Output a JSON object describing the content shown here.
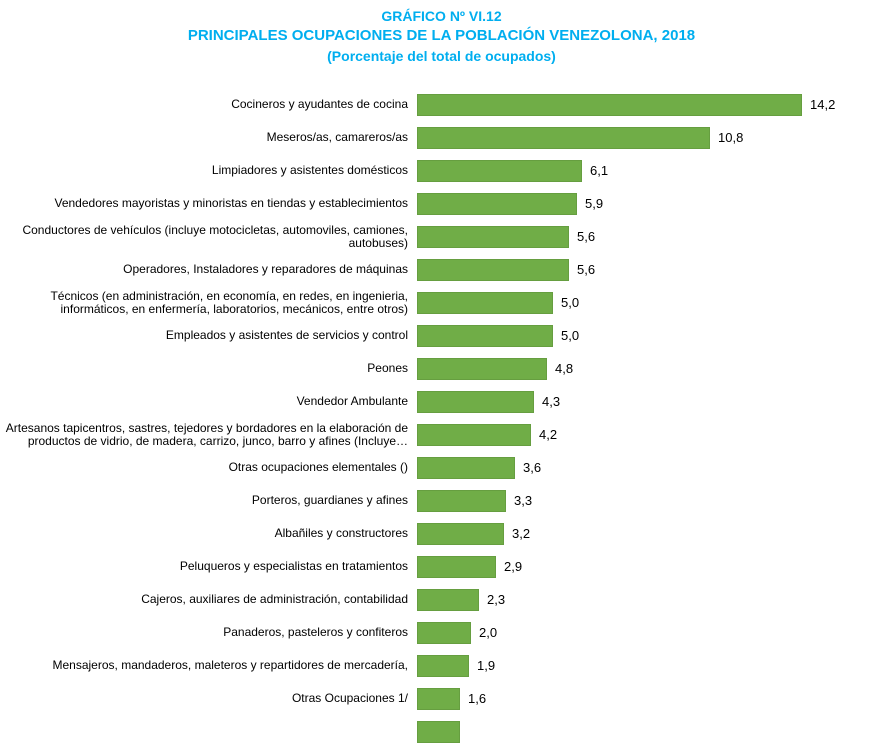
{
  "title": {
    "line1": "GRÁFICO Nº VI.12",
    "line2": "PRINCIPALES OCUPACIONES DE LA POBLACIÓN VENEZOLONA, 2018",
    "line3": "(Porcentaje del total de ocupados)"
  },
  "colors": {
    "title_text": "#00AEEF",
    "bar_fill": "#70AD47"
  },
  "chart_data": {
    "type": "bar",
    "orientation": "horizontal",
    "title": "GRÁFICO Nº VI.12 — PRINCIPALES OCUPACIONES DE LA POBLACIÓN VENEZOLONA, 2018 (Porcentaje del total de ocupados)",
    "xlabel": "",
    "ylabel": "",
    "xlim": [
      0,
      15
    ],
    "grid": false,
    "legend": false,
    "categories": [
      "Cocineros y ayudantes de cocina",
      "Meseros/as, camareros/as",
      "Limpiadores y asistentes domésticos",
      "Vendedores mayoristas y minoristas en tiendas y establecimientos",
      "Conductores de vehículos (incluye motocicletas, automoviles, camiones, autobuses)",
      "Operadores, Instaladores  y reparadores de máquinas",
      "Técnicos (en administración, en economía, en redes, en ingenieria, informáticos, en enfermería, laboratorios, mecánicos, entre otros)",
      "Empleados y asistentes de servicios y control",
      "Peones",
      "Vendedor Ambulante",
      "Artesanos tapicentros, sastres, tejedores y bordadores en la elaboración de productos de vidrio, de madera, carrizo, junco, barro y afines (Incluye…",
      "Otras ocupaciones elementales ()",
      "Porteros, guardianes y afines",
      "Albañiles y constructores",
      "Peluqueros y especialistas en tratamientos",
      "Cajeros, auxiliares de administración, contabilidad",
      "Panaderos, pasteleros y confiteros",
      "Mensajeros, mandaderos, maleteros y repartidores de mercadería,",
      "Otras Ocupaciones 1/"
    ],
    "values": [
      14.2,
      10.8,
      6.1,
      5.9,
      5.6,
      5.6,
      5.0,
      5.0,
      4.8,
      4.3,
      4.2,
      3.6,
      3.3,
      3.2,
      2.9,
      2.3,
      2.0,
      1.9,
      1.6
    ],
    "value_labels": [
      "14,2",
      "10,8",
      "6,1",
      "5,9",
      "5,6",
      "5,6",
      "5,0",
      "5,0",
      "4,8",
      "4,3",
      "4,2",
      "3,6",
      "3,3",
      "3,2",
      "2,9",
      "2,3",
      "2,0",
      "1,9",
      "1,6"
    ],
    "bottom_clipped_bar": true
  }
}
